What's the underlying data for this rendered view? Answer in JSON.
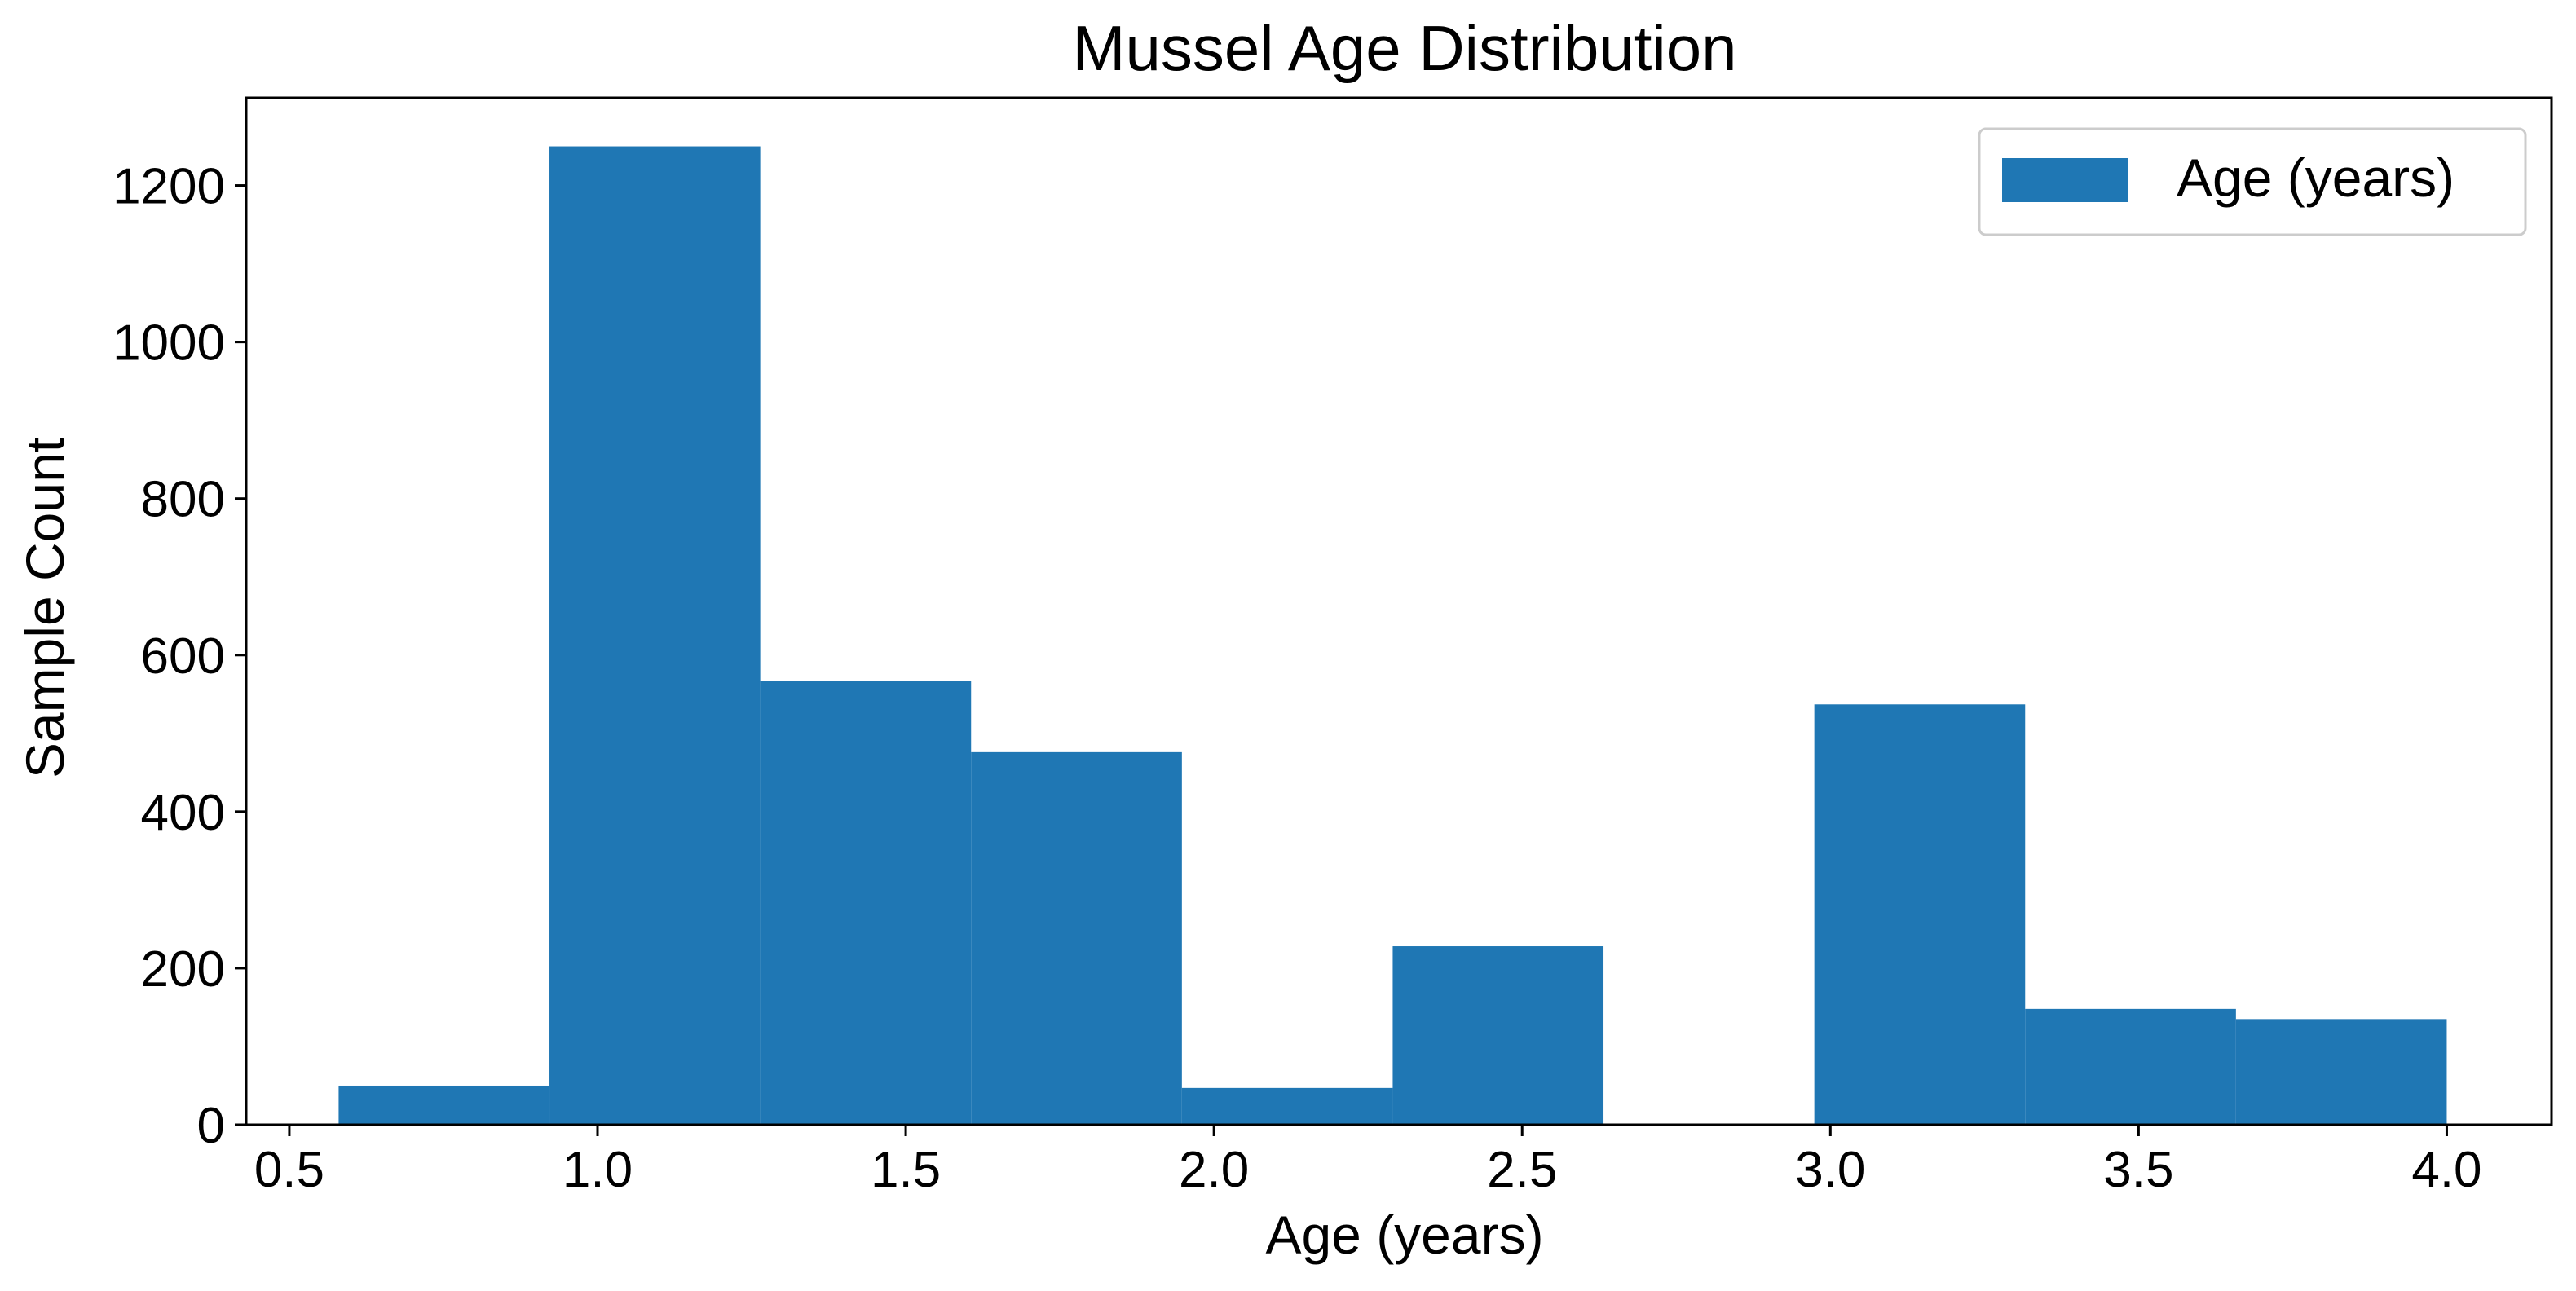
{
  "chart_data": {
    "type": "bar",
    "title": "Mussel Age Distribution",
    "xlabel": "Age (years)",
    "ylabel": "Sample Count",
    "xlim": [
      0.43,
      4.17
    ],
    "ylim": [
      0,
      1312
    ],
    "xticks": [
      0.5,
      1.0,
      1.5,
      2.0,
      2.5,
      3.0,
      3.5,
      4.0
    ],
    "xtick_labels": [
      "0.5",
      "1.0",
      "1.5",
      "2.0",
      "2.5",
      "3.0",
      "3.5",
      "4.0"
    ],
    "yticks": [
      0,
      200,
      400,
      600,
      800,
      1000,
      1200
    ],
    "ytick_labels": [
      "0",
      "200",
      "400",
      "600",
      "800",
      "1000",
      "1200"
    ],
    "bin_edges": [
      0.58,
      0.922,
      1.264,
      1.606,
      1.948,
      2.29,
      2.632,
      2.974,
      3.316,
      3.658,
      4.0
    ],
    "series": [
      {
        "name": "Age (years)",
        "values": [
          50,
          1250,
          567,
          476,
          47,
          228,
          0,
          537,
          148,
          135
        ],
        "color": "#1f77b4"
      }
    ],
    "legend": {
      "placement": "top-right"
    },
    "grid": false
  }
}
